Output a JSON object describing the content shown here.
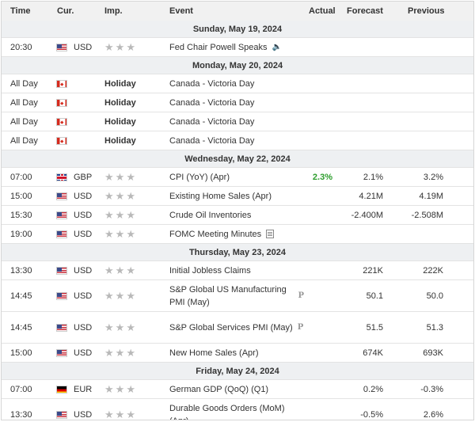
{
  "columns": {
    "time": "Time",
    "currency": "Cur.",
    "importance": "Imp.",
    "event": "Event",
    "actual": "Actual",
    "forecast": "Forecast",
    "previous": "Previous"
  },
  "days": [
    {
      "date": "Sunday, May 19, 2024",
      "events": [
        {
          "time": "20:30",
          "flag": "us",
          "currency": "USD",
          "importance": 3,
          "event": "Fed Chair Powell Speaks",
          "icon": "speaker",
          "actual": "",
          "forecast": "",
          "previous": ""
        }
      ]
    },
    {
      "date": "Monday, May 20, 2024",
      "events": [
        {
          "time": "All Day",
          "flag": "ca",
          "holiday": "Holiday",
          "event": "Canada - Victoria Day"
        },
        {
          "time": "All Day",
          "flag": "ca",
          "holiday": "Holiday",
          "event": "Canada - Victoria Day"
        },
        {
          "time": "All Day",
          "flag": "ca",
          "holiday": "Holiday",
          "event": "Canada - Victoria Day"
        },
        {
          "time": "All Day",
          "flag": "ca",
          "holiday": "Holiday",
          "event": "Canada - Victoria Day"
        }
      ]
    },
    {
      "date": "Wednesday, May 22, 2024",
      "events": [
        {
          "time": "07:00",
          "flag": "gb",
          "currency": "GBP",
          "importance": 3,
          "event": "CPI (YoY) (Apr)",
          "actual": "2.3%",
          "actual_color": "green",
          "forecast": "2.1%",
          "previous": "3.2%"
        },
        {
          "time": "15:00",
          "flag": "us",
          "currency": "USD",
          "importance": 3,
          "event": "Existing Home Sales (Apr)",
          "actual": "",
          "forecast": "4.21M",
          "previous": "4.19M"
        },
        {
          "time": "15:30",
          "flag": "us",
          "currency": "USD",
          "importance": 3,
          "event": "Crude Oil Inventories",
          "actual": "",
          "forecast": "-2.400M",
          "previous": "-2.508M"
        },
        {
          "time": "19:00",
          "flag": "us",
          "currency": "USD",
          "importance": 3,
          "event": "FOMC Meeting Minutes",
          "icon": "doc",
          "actual": "",
          "forecast": "",
          "previous": ""
        }
      ]
    },
    {
      "date": "Thursday, May 23, 2024",
      "events": [
        {
          "time": "13:30",
          "flag": "us",
          "currency": "USD",
          "importance": 3,
          "event": "Initial Jobless Claims",
          "actual": "",
          "forecast": "221K",
          "previous": "222K"
        },
        {
          "time": "14:45",
          "flag": "us",
          "currency": "USD",
          "importance": 3,
          "event": "S&P Global US Manufacturing PMI (May)",
          "icon": "prelim",
          "actual": "",
          "forecast": "50.1",
          "previous": "50.0",
          "tall": true
        },
        {
          "time": "14:45",
          "flag": "us",
          "currency": "USD",
          "importance": 3,
          "event": "S&P Global Services PMI (May)",
          "icon": "prelim",
          "actual": "",
          "forecast": "51.5",
          "previous": "51.3",
          "tall": true
        },
        {
          "time": "15:00",
          "flag": "us",
          "currency": "USD",
          "importance": 3,
          "event": "New Home Sales (Apr)",
          "actual": "",
          "forecast": "674K",
          "previous": "693K"
        }
      ]
    },
    {
      "date": "Friday, May 24, 2024",
      "events": [
        {
          "time": "07:00",
          "flag": "de",
          "currency": "EUR",
          "importance": 3,
          "event": "German GDP (QoQ) (Q1)",
          "actual": "",
          "forecast": "0.2%",
          "previous": "-0.3%"
        },
        {
          "time": "13:30",
          "flag": "us",
          "currency": "USD",
          "importance": 3,
          "event": "Durable Goods Orders (MoM) (Apr)",
          "actual": "",
          "forecast": "-0.5%",
          "previous": "2.6%",
          "tall": true
        }
      ]
    }
  ],
  "icons": {
    "star": "star-icon",
    "prelim_glyph": "P",
    "speaker_glyph": "🔈"
  },
  "colors": {
    "actual_green": "#2e9e2e",
    "header_bg": "#f1f1f1",
    "date_bg": "#eef0f2"
  }
}
